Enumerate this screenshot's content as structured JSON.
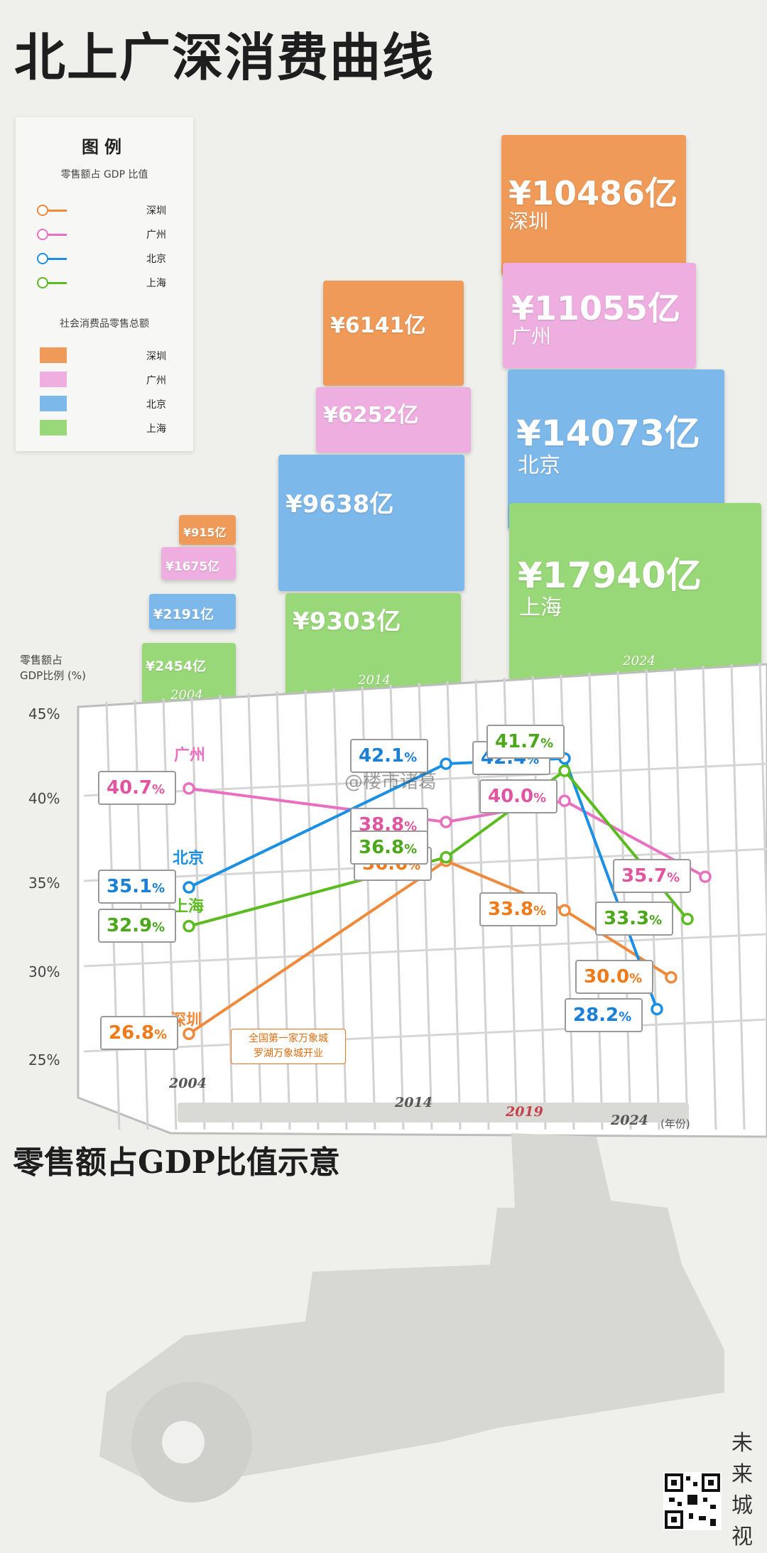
{
  "title": "北上广深消费曲线",
  "subtitle": "零售额占GDP比值示意",
  "legend": {
    "title": "图例",
    "ratio_section": "零售额占 GDP 比值",
    "total_section": "社会消费品零售总额",
    "items": [
      "深圳",
      "广州",
      "北京",
      "上海"
    ]
  },
  "colors": {
    "shenzhen": "#ef8a3c",
    "guangzhou": "#e96fc0",
    "beijing": "#1a8fe3",
    "shanghai": "#5bbc1f",
    "box_shenzhen": "#ef9a58",
    "box_guangzhou": "#eeaee0",
    "box_beijing": "#7db8ea",
    "box_shanghai": "#98d878"
  },
  "boxes": {
    "y2004": {
      "year": "2004",
      "shenzhen": "¥915亿",
      "guangzhou": "¥1675亿",
      "beijing": "¥2191亿",
      "shanghai": "¥2454亿"
    },
    "y2014": {
      "year": "2014",
      "shenzhen": "¥6141亿",
      "guangzhou": "¥6252亿",
      "beijing": "¥9638亿",
      "shanghai": "¥9303亿"
    },
    "y2024": {
      "year": "2024",
      "shenzhen": "¥10486亿",
      "guangzhou": "¥11055亿",
      "beijing": "¥14073亿",
      "shanghai": "¥17940亿",
      "shenzhen_city": "深圳",
      "guangzhou_city": "广州",
      "beijing_city": "北京",
      "shanghai_city": "上海"
    }
  },
  "axis": {
    "ylabel_line1": "零售额占",
    "ylabel_line2": "GDP比例 (%)",
    "yticks": [
      "45%",
      "40%",
      "35%",
      "30%",
      "25%"
    ],
    "xticks": [
      "2004",
      "2014",
      "2019",
      "2024"
    ],
    "x_unit": "(年份)"
  },
  "annotation": {
    "line1": "全国第一家万象城",
    "line2": "罗湖万象城开业"
  },
  "watermark": "@楼市诸葛",
  "brand": [
    "未",
    "来",
    "城",
    "视"
  ],
  "chart_data": [
    {
      "type": "bar",
      "title": "社会消费品零售总额",
      "categories": [
        "2004",
        "2014",
        "2024"
      ],
      "series": [
        {
          "name": "深圳",
          "values": [
            915,
            6141,
            10486
          ]
        },
        {
          "name": "广州",
          "values": [
            1675,
            6252,
            11055
          ]
        },
        {
          "name": "北京",
          "values": [
            2191,
            9638,
            14073
          ]
        },
        {
          "name": "上海",
          "values": [
            2454,
            9303,
            17940
          ]
        }
      ],
      "unit": "亿"
    },
    {
      "type": "line",
      "title": "零售额占GDP比值示意",
      "xlabel": "(年份)",
      "ylabel": "零售额占GDP比例 (%)",
      "ylim": [
        25,
        45
      ],
      "series": [
        {
          "name": "深圳",
          "x": [
            2004,
            2014,
            2019,
            2024
          ],
          "values": [
            26.8,
            36.6,
            33.8,
            30.0
          ]
        },
        {
          "name": "广州",
          "x": [
            2004,
            2014,
            2019,
            2024
          ],
          "values": [
            40.7,
            38.8,
            40.0,
            35.7
          ]
        },
        {
          "name": "北京",
          "x": [
            2004,
            2014,
            2019,
            2024
          ],
          "values": [
            35.1,
            42.1,
            42.4,
            28.2
          ]
        },
        {
          "name": "上海",
          "x": [
            2004,
            2014,
            2019,
            2024
          ],
          "values": [
            32.9,
            36.8,
            41.7,
            33.3
          ]
        }
      ],
      "labels": {
        "深圳": [
          "26.8",
          "36.6",
          "33.8",
          "30.0"
        ],
        "广州": [
          "40.7",
          "38.8",
          "40.0",
          "35.7"
        ],
        "北京": [
          "35.1",
          "42.1",
          "42.4",
          "28.2"
        ],
        "上海": [
          "32.9",
          "36.8",
          "41.7",
          "33.3"
        ]
      },
      "pct_suffix": "%"
    }
  ]
}
